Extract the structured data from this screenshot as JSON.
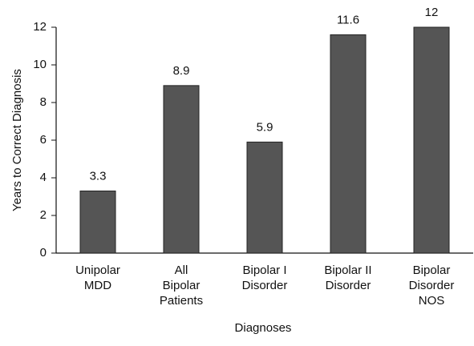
{
  "chart_data": {
    "type": "bar",
    "categories": [
      "Unipolar\nMDD",
      "All\nBipolar\nPatients",
      "Bipolar I\nDisorder",
      "Bipolar II\nDisorder",
      "Bipolar\nDisorder\nNOS"
    ],
    "values": [
      3.3,
      8.9,
      5.9,
      11.6,
      12
    ],
    "color": "#555555",
    "xlabel": "Diagnoses",
    "ylabel": "Years to Correct Diagnosis",
    "ylim": [
      0,
      12
    ],
    "yticks": [
      0,
      2,
      4,
      6,
      8,
      10,
      12
    ],
    "grid": false
  }
}
